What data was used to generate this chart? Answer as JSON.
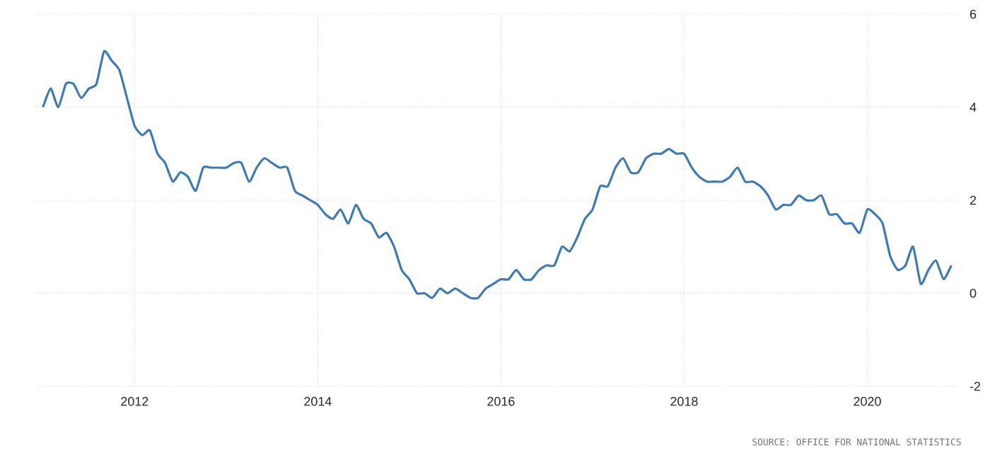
{
  "chart_data": {
    "type": "line",
    "x": [
      "2011-01",
      "2011-02",
      "2011-03",
      "2011-04",
      "2011-05",
      "2011-06",
      "2011-07",
      "2011-08",
      "2011-09",
      "2011-10",
      "2011-11",
      "2011-12",
      "2012-01",
      "2012-02",
      "2012-03",
      "2012-04",
      "2012-05",
      "2012-06",
      "2012-07",
      "2012-08",
      "2012-09",
      "2012-10",
      "2012-11",
      "2012-12",
      "2013-01",
      "2013-02",
      "2013-03",
      "2013-04",
      "2013-05",
      "2013-06",
      "2013-07",
      "2013-08",
      "2013-09",
      "2013-10",
      "2013-11",
      "2013-12",
      "2014-01",
      "2014-02",
      "2014-03",
      "2014-04",
      "2014-05",
      "2014-06",
      "2014-07",
      "2014-08",
      "2014-09",
      "2014-10",
      "2014-11",
      "2014-12",
      "2015-01",
      "2015-02",
      "2015-03",
      "2015-04",
      "2015-05",
      "2015-06",
      "2015-07",
      "2015-08",
      "2015-09",
      "2015-10",
      "2015-11",
      "2015-12",
      "2016-01",
      "2016-02",
      "2016-03",
      "2016-04",
      "2016-05",
      "2016-06",
      "2016-07",
      "2016-08",
      "2016-09",
      "2016-10",
      "2016-11",
      "2016-12",
      "2017-01",
      "2017-02",
      "2017-03",
      "2017-04",
      "2017-05",
      "2017-06",
      "2017-07",
      "2017-08",
      "2017-09",
      "2017-10",
      "2017-11",
      "2017-12",
      "2018-01",
      "2018-02",
      "2018-03",
      "2018-04",
      "2018-05",
      "2018-06",
      "2018-07",
      "2018-08",
      "2018-09",
      "2018-10",
      "2018-11",
      "2018-12",
      "2019-01",
      "2019-02",
      "2019-03",
      "2019-04",
      "2019-05",
      "2019-06",
      "2019-07",
      "2019-08",
      "2019-09",
      "2019-10",
      "2019-11",
      "2019-12",
      "2020-01",
      "2020-02",
      "2020-03",
      "2020-04",
      "2020-05",
      "2020-06",
      "2020-07",
      "2020-08",
      "2020-09",
      "2020-10",
      "2020-11",
      "2020-12"
    ],
    "series": [
      {
        "color": "#3d7ab5",
        "values": [
          4.0,
          4.4,
          4.0,
          4.5,
          4.5,
          4.2,
          4.4,
          4.5,
          5.2,
          5.0,
          4.8,
          4.2,
          3.6,
          3.4,
          3.5,
          3.0,
          2.8,
          2.4,
          2.6,
          2.5,
          2.2,
          2.7,
          2.7,
          2.7,
          2.7,
          2.8,
          2.8,
          2.4,
          2.7,
          2.9,
          2.8,
          2.7,
          2.7,
          2.2,
          2.1,
          2.0,
          1.9,
          1.7,
          1.6,
          1.8,
          1.5,
          1.9,
          1.6,
          1.5,
          1.2,
          1.3,
          1.0,
          0.5,
          0.3,
          0.0,
          0.0,
          -0.1,
          0.1,
          0.0,
          0.1,
          0.0,
          -0.1,
          -0.1,
          0.1,
          0.2,
          0.3,
          0.3,
          0.5,
          0.3,
          0.3,
          0.5,
          0.6,
          0.6,
          1.0,
          0.9,
          1.2,
          1.6,
          1.8,
          2.3,
          2.3,
          2.7,
          2.9,
          2.6,
          2.6,
          2.9,
          3.0,
          3.0,
          3.1,
          3.0,
          3.0,
          2.7,
          2.5,
          2.4,
          2.4,
          2.4,
          2.5,
          2.7,
          2.4,
          2.4,
          2.3,
          2.1,
          1.8,
          1.9,
          1.9,
          2.1,
          2.0,
          2.0,
          2.1,
          1.7,
          1.7,
          1.5,
          1.5,
          1.3,
          1.8,
          1.7,
          1.5,
          0.8,
          0.5,
          0.6,
          1.0,
          0.2,
          0.5,
          0.7,
          0.3,
          0.6
        ]
      }
    ],
    "xlim": [
      "2010-12",
      "2021-01"
    ],
    "xticks": [
      "2012",
      "2014",
      "2016",
      "2018",
      "2020"
    ],
    "ylim": [
      -2,
      6
    ],
    "yticks": [
      -2,
      0,
      2,
      4,
      6
    ],
    "grid": true,
    "annotations": [
      "SOURCE: OFFICE FOR NATIONAL STATISTICS"
    ]
  }
}
